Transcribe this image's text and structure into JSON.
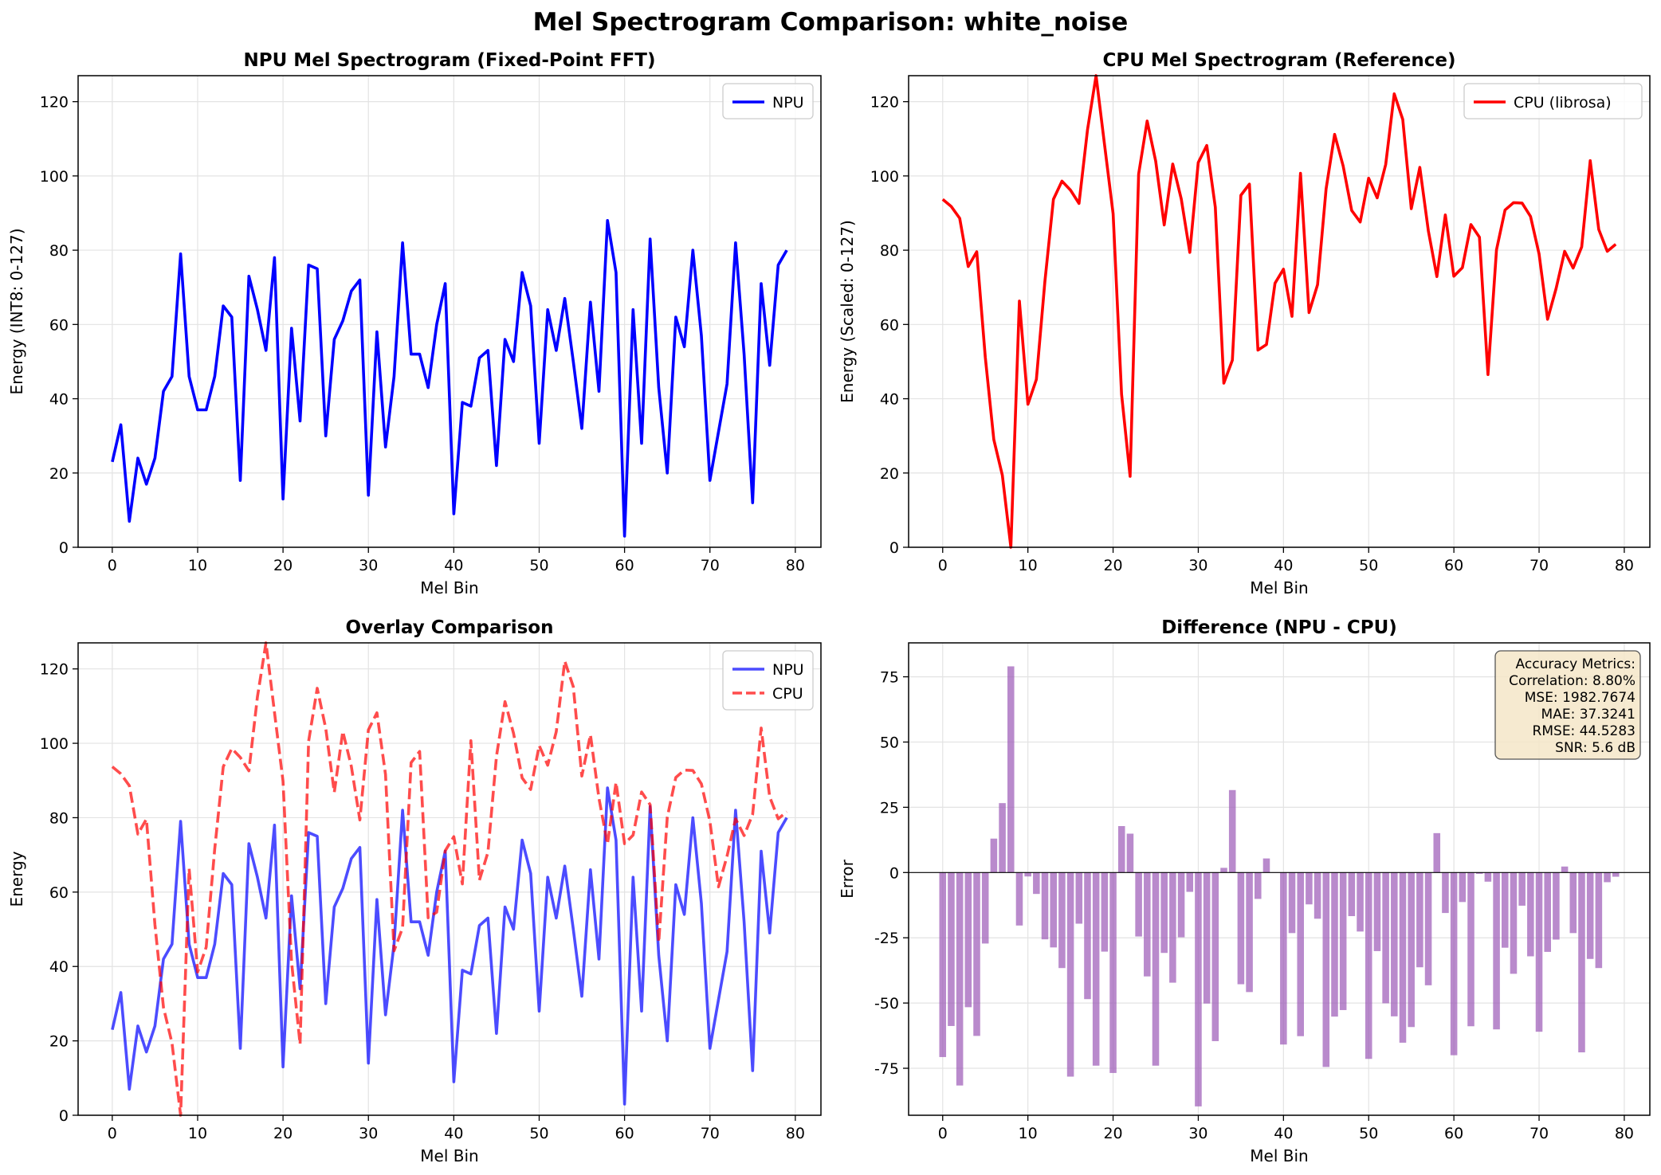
{
  "figure": {
    "title": "Mel Spectrogram Comparison: white_noise"
  },
  "colors": {
    "npu": "#0000ff",
    "cpu": "#ff0000",
    "bars": "#9b59b6",
    "grid": "#dddddd",
    "textbox_bg": "#f5e6c8"
  },
  "chart_data": [
    {
      "type": "line",
      "title": "NPU Mel Spectrogram (Fixed-Point FFT)",
      "xlabel": "Mel Bin",
      "ylabel": "Energy (INT8: 0-127)",
      "xlim": [
        -4,
        83
      ],
      "ylim": [
        0,
        127
      ],
      "xticks": [
        0,
        10,
        20,
        30,
        40,
        50,
        60,
        70,
        80
      ],
      "yticks": [
        0,
        20,
        40,
        60,
        80,
        100,
        120
      ],
      "grid": true,
      "legend": "top-right",
      "series": [
        {
          "name": "NPU",
          "color": "#0000ff",
          "style": "solid",
          "values": [
            23,
            33,
            7,
            24,
            17,
            24,
            42,
            46,
            79,
            46,
            37,
            37,
            46,
            65,
            62,
            18,
            73,
            64,
            53,
            78,
            13,
            59,
            34,
            76,
            75,
            30,
            56,
            61,
            69,
            72,
            14,
            58,
            27,
            46,
            82,
            52,
            52,
            43,
            60,
            71,
            9,
            39,
            38,
            51,
            53,
            22,
            56,
            50,
            74,
            65,
            28,
            64,
            53,
            67,
            50,
            32,
            66,
            42,
            88,
            74,
            3,
            64,
            28,
            83,
            43,
            20,
            62,
            54,
            80,
            57,
            18,
            31,
            44,
            82,
            52,
            12,
            71,
            49,
            76,
            80
          ]
        }
      ]
    },
    {
      "type": "line",
      "title": "CPU Mel Spectrogram (Reference)",
      "xlabel": "Mel Bin",
      "ylabel": "Energy (Scaled: 0-127)",
      "xlim": [
        -4,
        83
      ],
      "ylim": [
        0,
        127
      ],
      "xticks": [
        0,
        10,
        20,
        30,
        40,
        50,
        60,
        70,
        80
      ],
      "yticks": [
        0,
        20,
        40,
        60,
        80,
        100,
        120
      ],
      "grid": true,
      "legend": "top-right",
      "series": [
        {
          "name": "CPU (librosa)",
          "color": "#ff0000",
          "style": "solid",
          "values": [
            93.7,
            91.8,
            88.6,
            75.6,
            79.6,
            51.2,
            29,
            19.4,
            0,
            66.3,
            38.5,
            45.2,
            71.6,
            93.7,
            98.6,
            96.2,
            92.6,
            112.5,
            127,
            108.3,
            89.8,
            41.2,
            19.1,
            100.5,
            114.8,
            104,
            86.8,
            103.2,
            93.8,
            79.4,
            103.6,
            108.2,
            91.6,
            44.2,
            50.4,
            94.8,
            97.8,
            53.1,
            54.6,
            71.1,
            74.9,
            62.2,
            100.7,
            63.2,
            70.7,
            96.5,
            111.2,
            102.7,
            90.7,
            87.6,
            99.4,
            94.1,
            103.1,
            122.1,
            115.2,
            91.2,
            102.3,
            85.2,
            72.9,
            89.5,
            73,
            75.3,
            86.9,
            83.5,
            46.5,
            80.1,
            90.8,
            92.8,
            92.7,
            89.1,
            79,
            61.4,
            69.7,
            79.7,
            75.2,
            80.9,
            104.1,
            85.6,
            79.7,
            81.6
          ]
        }
      ]
    },
    {
      "type": "line",
      "title": "Overlay Comparison",
      "xlabel": "Mel Bin",
      "ylabel": "Energy",
      "xlim": [
        -4,
        83
      ],
      "ylim": [
        0,
        127
      ],
      "xticks": [
        0,
        10,
        20,
        30,
        40,
        50,
        60,
        70,
        80
      ],
      "yticks": [
        0,
        20,
        40,
        60,
        80,
        100,
        120
      ],
      "grid": true,
      "legend": "top-right",
      "series": [
        {
          "name": "NPU",
          "color": "#0000ff",
          "style": "solid",
          "alpha": 0.7,
          "values": [
            23,
            33,
            7,
            24,
            17,
            24,
            42,
            46,
            79,
            46,
            37,
            37,
            46,
            65,
            62,
            18,
            73,
            64,
            53,
            78,
            13,
            59,
            34,
            76,
            75,
            30,
            56,
            61,
            69,
            72,
            14,
            58,
            27,
            46,
            82,
            52,
            52,
            43,
            60,
            71,
            9,
            39,
            38,
            51,
            53,
            22,
            56,
            50,
            74,
            65,
            28,
            64,
            53,
            67,
            50,
            32,
            66,
            42,
            88,
            74,
            3,
            64,
            28,
            83,
            43,
            20,
            62,
            54,
            80,
            57,
            18,
            31,
            44,
            82,
            52,
            12,
            71,
            49,
            76,
            80
          ]
        },
        {
          "name": "CPU",
          "color": "#ff0000",
          "style": "dashed",
          "alpha": 0.7,
          "values": [
            93.7,
            91.8,
            88.6,
            75.6,
            79.6,
            51.2,
            29,
            19.4,
            0,
            66.3,
            38.5,
            45.2,
            71.6,
            93.7,
            98.6,
            96.2,
            92.6,
            112.5,
            127,
            108.3,
            89.8,
            41.2,
            19.1,
            100.5,
            114.8,
            104,
            86.8,
            103.2,
            93.8,
            79.4,
            103.6,
            108.2,
            91.6,
            44.2,
            50.4,
            94.8,
            97.8,
            53.1,
            54.6,
            71.1,
            74.9,
            62.2,
            100.7,
            63.2,
            70.7,
            96.5,
            111.2,
            102.7,
            90.7,
            87.6,
            99.4,
            94.1,
            103.1,
            122.1,
            115.2,
            91.2,
            102.3,
            85.2,
            72.9,
            89.5,
            73,
            75.3,
            86.9,
            83.5,
            46.5,
            80.1,
            90.8,
            92.8,
            92.7,
            89.1,
            79,
            61.4,
            69.7,
            79.7,
            75.2,
            80.9,
            104.1,
            85.6,
            79.7,
            81.6
          ]
        }
      ]
    },
    {
      "type": "bar",
      "title": "Difference (NPU - CPU)",
      "xlabel": "Mel Bin",
      "ylabel": "Error",
      "xlim": [
        -4,
        83
      ],
      "ylim": [
        -93,
        88
      ],
      "xticks": [
        0,
        10,
        20,
        30,
        40,
        50,
        60,
        70,
        80
      ],
      "yticks": [
        -75,
        -50,
        -25,
        0,
        25,
        50,
        75
      ],
      "grid": true,
      "series": [
        {
          "color": "#9b59b6",
          "values": [
            -70.7,
            -58.8,
            -81.6,
            -51.6,
            -62.6,
            -27.2,
            13,
            26.6,
            79,
            -20.3,
            -1.5,
            -8.2,
            -25.6,
            -28.7,
            -36.6,
            -78.2,
            -19.6,
            -48.5,
            -74,
            -30.3,
            -76.8,
            17.8,
            14.9,
            -24.5,
            -39.8,
            -74,
            -30.8,
            -42.2,
            -24.8,
            -7.4,
            -89.6,
            -50.2,
            -64.6,
            1.8,
            31.6,
            -42.8,
            -45.8,
            -10.1,
            5.4,
            -0.1,
            -65.9,
            -23.2,
            -62.7,
            -12.2,
            -17.7,
            -74.5,
            -55.2,
            -52.7,
            -16.7,
            -22.6,
            -71.4,
            -30.1,
            -50.1,
            -55.1,
            -65.2,
            -59.2,
            -36.3,
            -43.2,
            15.1,
            -15.5,
            -70,
            -11.3,
            -58.9,
            -0.5,
            -3.5,
            -60.1,
            -28.8,
            -38.8,
            -12.7,
            -32.1,
            -61,
            -30.4,
            -25.7,
            2.3,
            -23.2,
            -68.9,
            -33.1,
            -36.6,
            -3.7,
            -1.6
          ]
        }
      ],
      "annotation": {
        "lines": [
          "Accuracy Metrics:",
          "Correlation: 8.80%",
          "MSE: 1982.7674",
          "MAE: 37.3241",
          "RMSE: 44.5283",
          "SNR: 5.6 dB"
        ]
      }
    }
  ]
}
